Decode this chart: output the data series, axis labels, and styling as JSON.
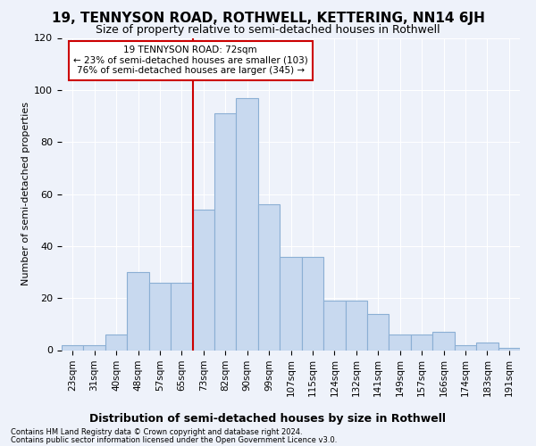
{
  "title": "19, TENNYSON ROAD, ROTHWELL, KETTERING, NN14 6JH",
  "subtitle": "Size of property relative to semi-detached houses in Rothwell",
  "xlabel": "Distribution of semi-detached houses by size in Rothwell",
  "ylabel": "Number of semi-detached properties",
  "categories": [
    "23sqm",
    "31sqm",
    "40sqm",
    "48sqm",
    "57sqm",
    "65sqm",
    "73sqm",
    "82sqm",
    "90sqm",
    "99sqm",
    "107sqm",
    "115sqm",
    "124sqm",
    "132sqm",
    "141sqm",
    "149sqm",
    "157sqm",
    "166sqm",
    "174sqm",
    "183sqm",
    "191sqm"
  ],
  "values": [
    2,
    2,
    6,
    30,
    26,
    26,
    54,
    91,
    97,
    56,
    36,
    36,
    19,
    19,
    14,
    6,
    6,
    7,
    2,
    3,
    1
  ],
  "bar_color": "#c8d9ef",
  "bar_edge_color": "#8bafd4",
  "vline_color": "#cc0000",
  "annotation_title": "19 TENNYSON ROAD: 72sqm",
  "annotation_line1": "← 23% of semi-detached houses are smaller (103)",
  "annotation_line2": "76% of semi-detached houses are larger (345) →",
  "annotation_box_color": "#ffffff",
  "annotation_box_edge": "#cc0000",
  "footer1": "Contains HM Land Registry data © Crown copyright and database right 2024.",
  "footer2": "Contains public sector information licensed under the Open Government Licence v3.0.",
  "ylim": [
    0,
    120
  ],
  "background_color": "#eef2fa",
  "grid_color": "#ffffff"
}
